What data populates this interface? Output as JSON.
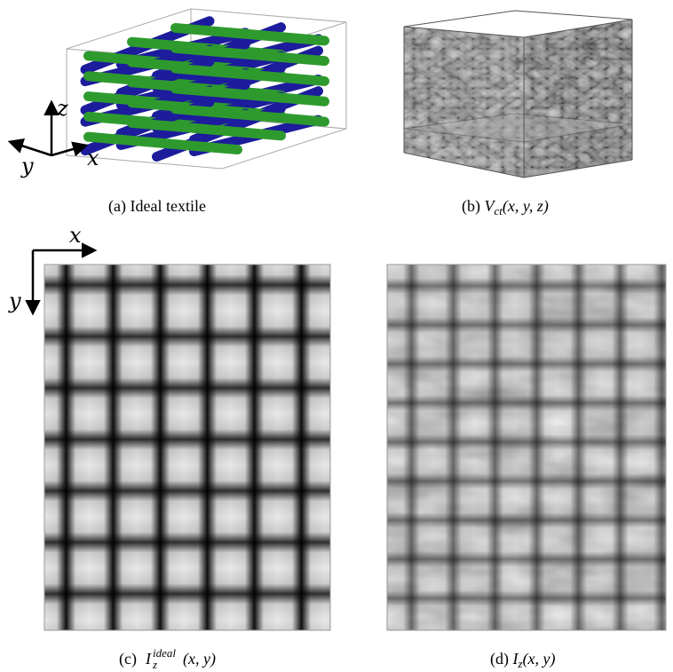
{
  "panels": [
    {
      "label": "(a)",
      "caption": "Ideal textile",
      "axes": [
        "z",
        "y",
        "x"
      ]
    },
    {
      "label": "(b)",
      "symbol": "V",
      "subscript": "ct",
      "args": "(x, y, z)"
    },
    {
      "label": "(c)",
      "symbol": "I",
      "subscript": "z",
      "superscript": "ideal",
      "args": "(x, y)",
      "axes": [
        "x",
        "y"
      ]
    },
    {
      "label": "(d)",
      "symbol": "I",
      "subscript": "z",
      "args": "(x, y)"
    }
  ]
}
